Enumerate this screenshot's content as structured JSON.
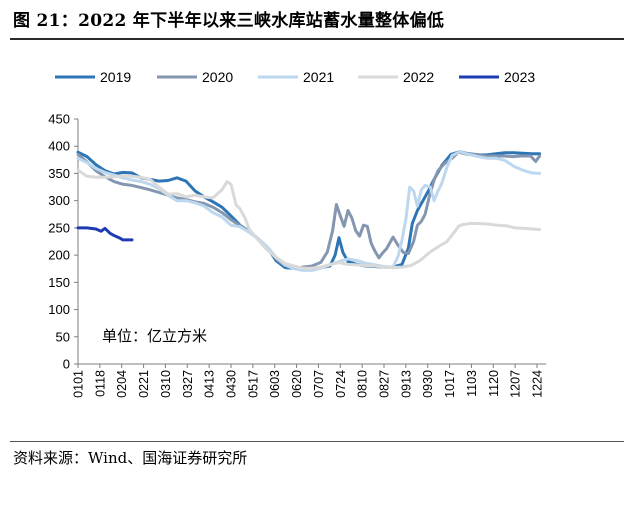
{
  "header": {
    "title": "图 21：2022 年下半年以来三峡水库站蓄水量整体偏低"
  },
  "footer": {
    "source": "资料来源：Wind、国海证券研究所"
  },
  "chart_data": {
    "type": "line",
    "title": "图 21：2022 年下半年以来三峡水库站蓄水量整体偏低",
    "unit_label": "单位：亿立方米",
    "ylim": [
      0,
      450
    ],
    "yticks": [
      0,
      50,
      100,
      150,
      200,
      250,
      300,
      350,
      400,
      450
    ],
    "xlabels": [
      "0101",
      "0118",
      "0204",
      "0221",
      "0310",
      "0327",
      "0413",
      "0430",
      "0517",
      "0603",
      "0620",
      "0707",
      "0724",
      "0810",
      "0827",
      "0913",
      "0930",
      "1017",
      "1103",
      "1120",
      "1207",
      "1224"
    ],
    "x_day_range": [
      1,
      365
    ],
    "legend_position": "top",
    "series": [
      {
        "name": "2019",
        "color": "#2e75b6",
        "width": 3,
        "points": [
          [
            1,
            389
          ],
          [
            8,
            381
          ],
          [
            15,
            366
          ],
          [
            22,
            355
          ],
          [
            29,
            349
          ],
          [
            36,
            352
          ],
          [
            43,
            351
          ],
          [
            50,
            342
          ],
          [
            57,
            339
          ],
          [
            64,
            336
          ],
          [
            71,
            337
          ],
          [
            78,
            342
          ],
          [
            85,
            336
          ],
          [
            92,
            318
          ],
          [
            99,
            307
          ],
          [
            106,
            298
          ],
          [
            113,
            288
          ],
          [
            120,
            272
          ],
          [
            127,
            255
          ],
          [
            134,
            244
          ],
          [
            141,
            230
          ],
          [
            148,
            215
          ],
          [
            155,
            190
          ],
          [
            162,
            177
          ],
          [
            169,
            176
          ],
          [
            176,
            176
          ],
          [
            183,
            176
          ],
          [
            190,
            177
          ],
          [
            197,
            180
          ],
          [
            201,
            200
          ],
          [
            204,
            232
          ],
          [
            207,
            205
          ],
          [
            211,
            188
          ],
          [
            218,
            183
          ],
          [
            225,
            180
          ],
          [
            232,
            179
          ],
          [
            239,
            178
          ],
          [
            246,
            178
          ],
          [
            253,
            183
          ],
          [
            258,
            213
          ],
          [
            261,
            258
          ],
          [
            265,
            282
          ],
          [
            270,
            303
          ],
          [
            274,
            320
          ],
          [
            277,
            335
          ],
          [
            284,
            365
          ],
          [
            291,
            385
          ],
          [
            298,
            390
          ],
          [
            305,
            386
          ],
          [
            312,
            384
          ],
          [
            319,
            384
          ],
          [
            326,
            386
          ],
          [
            333,
            388
          ],
          [
            340,
            388
          ],
          [
            347,
            387
          ],
          [
            354,
            386
          ],
          [
            360,
            386
          ]
        ]
      },
      {
        "name": "2020",
        "color": "#8496b0",
        "width": 3,
        "points": [
          [
            1,
            385
          ],
          [
            8,
            371
          ],
          [
            15,
            355
          ],
          [
            22,
            344
          ],
          [
            29,
            335
          ],
          [
            36,
            330
          ],
          [
            43,
            328
          ],
          [
            50,
            324
          ],
          [
            57,
            320
          ],
          [
            64,
            315
          ],
          [
            71,
            310
          ],
          [
            78,
            305
          ],
          [
            85,
            302
          ],
          [
            92,
            298
          ],
          [
            99,
            295
          ],
          [
            106,
            288
          ],
          [
            113,
            278
          ],
          [
            120,
            265
          ],
          [
            127,
            254
          ],
          [
            134,
            244
          ],
          [
            141,
            230
          ],
          [
            148,
            215
          ],
          [
            155,
            193
          ],
          [
            162,
            181
          ],
          [
            169,
            176
          ],
          [
            176,
            178
          ],
          [
            183,
            180
          ],
          [
            190,
            187
          ],
          [
            195,
            206
          ],
          [
            199,
            245
          ],
          [
            202,
            293
          ],
          [
            205,
            272
          ],
          [
            208,
            253
          ],
          [
            211,
            282
          ],
          [
            214,
            268
          ],
          [
            217,
            245
          ],
          [
            220,
            235
          ],
          [
            223,
            255
          ],
          [
            226,
            253
          ],
          [
            229,
            222
          ],
          [
            232,
            207
          ],
          [
            235,
            195
          ],
          [
            238,
            204
          ],
          [
            241,
            212
          ],
          [
            246,
            233
          ],
          [
            250,
            218
          ],
          [
            254,
            205
          ],
          [
            258,
            203
          ],
          [
            262,
            225
          ],
          [
            265,
            255
          ],
          [
            268,
            262
          ],
          [
            271,
            275
          ],
          [
            274,
            305
          ],
          [
            278,
            338
          ],
          [
            281,
            355
          ],
          [
            286,
            368
          ],
          [
            292,
            378
          ],
          [
            297,
            389
          ],
          [
            304,
            385
          ],
          [
            311,
            385
          ],
          [
            318,
            382
          ],
          [
            325,
            382
          ],
          [
            332,
            382
          ],
          [
            339,
            381
          ],
          [
            346,
            382
          ],
          [
            353,
            382
          ],
          [
            357,
            372
          ],
          [
            360,
            382
          ]
        ]
      },
      {
        "name": "2021",
        "color": "#bdd7ee",
        "width": 3,
        "points": [
          [
            1,
            378
          ],
          [
            8,
            370
          ],
          [
            15,
            359
          ],
          [
            22,
            352
          ],
          [
            29,
            347
          ],
          [
            36,
            342
          ],
          [
            43,
            338
          ],
          [
            50,
            335
          ],
          [
            57,
            330
          ],
          [
            64,
            322
          ],
          [
            71,
            310
          ],
          [
            78,
            300
          ],
          [
            85,
            300
          ],
          [
            92,
            296
          ],
          [
            99,
            290
          ],
          [
            106,
            278
          ],
          [
            113,
            270
          ],
          [
            120,
            255
          ],
          [
            127,
            252
          ],
          [
            134,
            242
          ],
          [
            141,
            230
          ],
          [
            148,
            216
          ],
          [
            155,
            196
          ],
          [
            162,
            182
          ],
          [
            169,
            175
          ],
          [
            176,
            172
          ],
          [
            183,
            172
          ],
          [
            190,
            176
          ],
          [
            197,
            182
          ],
          [
            204,
            188
          ],
          [
            211,
            193
          ],
          [
            218,
            190
          ],
          [
            225,
            185
          ],
          [
            232,
            182
          ],
          [
            239,
            179
          ],
          [
            246,
            178
          ],
          [
            250,
            198
          ],
          [
            253,
            228
          ],
          [
            256,
            266
          ],
          [
            259,
            325
          ],
          [
            262,
            318
          ],
          [
            265,
            290
          ],
          [
            268,
            320
          ],
          [
            271,
            328
          ],
          [
            275,
            325
          ],
          [
            278,
            300
          ],
          [
            281,
            318
          ],
          [
            284,
            332
          ],
          [
            288,
            362
          ],
          [
            292,
            383
          ],
          [
            298,
            390
          ],
          [
            305,
            385
          ],
          [
            312,
            381
          ],
          [
            319,
            378
          ],
          [
            326,
            378
          ],
          [
            333,
            374
          ],
          [
            340,
            363
          ],
          [
            347,
            356
          ],
          [
            354,
            351
          ],
          [
            360,
            350
          ]
        ]
      },
      {
        "name": "2022",
        "color": "#d9d9d9",
        "width": 3,
        "points": [
          [
            1,
            356
          ],
          [
            8,
            345
          ],
          [
            15,
            343
          ],
          [
            22,
            343
          ],
          [
            29,
            344
          ],
          [
            36,
            346
          ],
          [
            43,
            345
          ],
          [
            50,
            343
          ],
          [
            57,
            339
          ],
          [
            64,
            325
          ],
          [
            71,
            312
          ],
          [
            78,
            313
          ],
          [
            85,
            307
          ],
          [
            92,
            310
          ],
          [
            99,
            307
          ],
          [
            106,
            305
          ],
          [
            113,
            320
          ],
          [
            117,
            335
          ],
          [
            120,
            330
          ],
          [
            124,
            292
          ],
          [
            127,
            285
          ],
          [
            131,
            268
          ],
          [
            134,
            248
          ],
          [
            141,
            228
          ],
          [
            148,
            210
          ],
          [
            155,
            196
          ],
          [
            162,
            185
          ],
          [
            169,
            180
          ],
          [
            176,
            176
          ],
          [
            183,
            176
          ],
          [
            190,
            178
          ],
          [
            197,
            183
          ],
          [
            204,
            186
          ],
          [
            211,
            183
          ],
          [
            218,
            182
          ],
          [
            225,
            181
          ],
          [
            232,
            180
          ],
          [
            239,
            178
          ],
          [
            246,
            177
          ],
          [
            253,
            178
          ],
          [
            260,
            181
          ],
          [
            267,
            190
          ],
          [
            274,
            204
          ],
          [
            281,
            215
          ],
          [
            288,
            225
          ],
          [
            293,
            240
          ],
          [
            297,
            253
          ],
          [
            300,
            256
          ],
          [
            306,
            258
          ],
          [
            313,
            258
          ],
          [
            320,
            257
          ],
          [
            327,
            255
          ],
          [
            334,
            254
          ],
          [
            341,
            250
          ],
          [
            348,
            249
          ],
          [
            355,
            248
          ],
          [
            360,
            247
          ]
        ]
      },
      {
        "name": "2023",
        "color": "#1f3bb3",
        "width": 3,
        "points": [
          [
            1,
            250
          ],
          [
            8,
            250
          ],
          [
            15,
            248
          ],
          [
            19,
            244
          ],
          [
            22,
            249
          ],
          [
            26,
            240
          ],
          [
            29,
            236
          ],
          [
            33,
            232
          ],
          [
            36,
            228
          ],
          [
            43,
            228
          ]
        ]
      }
    ]
  }
}
